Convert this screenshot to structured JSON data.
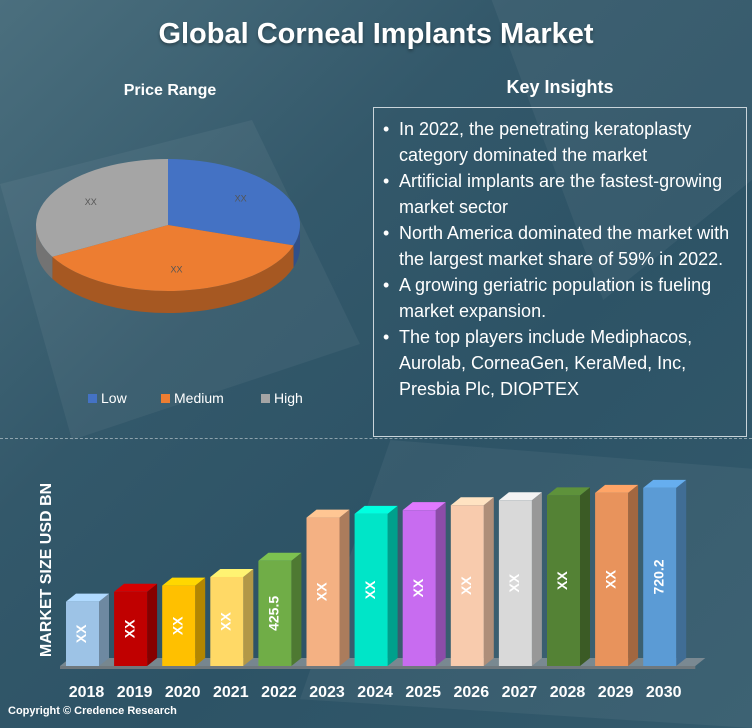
{
  "title": "Global Corneal Implants Market",
  "copyright": "Copyright © Credence Research",
  "insights": {
    "heading": "Key Insights",
    "items": [
      "In 2022, the penetrating keratoplasty category dominated the market",
      "Artificial implants are the fastest-growing market sector",
      "North America dominated the market with the largest market share of 59% in 2022.",
      "A growing geriatric population is fueling market expansion.",
      "The top players include Mediphacos, Aurolab, CorneaGen, KeraMed, Inc, Presbia Plc, DIOPTEX"
    ]
  },
  "chart_data": [
    {
      "type": "pie",
      "title": "Price Range",
      "categories": [
        "Low",
        "Medium",
        "High"
      ],
      "values": [
        30,
        37,
        33
      ],
      "labels": [
        "XX",
        "XX",
        "XX"
      ],
      "colors": [
        "#4472c4",
        "#ed7d31",
        "#a5a5a5"
      ],
      "legend": "bottom"
    },
    {
      "type": "bar",
      "title": "",
      "xlabel": "",
      "ylabel": "MARKET SIZE USD BN",
      "categories": [
        "2018",
        "2019",
        "2020",
        "2021",
        "2022",
        "2023",
        "2024",
        "2025",
        "2026",
        "2027",
        "2028",
        "2029",
        "2030"
      ],
      "values": [
        260,
        300,
        325,
        360,
        425.5,
        600,
        615,
        630,
        650,
        670,
        690,
        700,
        720.2
      ],
      "labels": [
        "XX",
        "XX",
        "XX",
        "XX",
        "425.5",
        "XX",
        "XX",
        "XX",
        "XX",
        "XX",
        "XX",
        "XX",
        "720.2"
      ],
      "colors": [
        "#9dc3e6",
        "#c00000",
        "#ffc000",
        "#ffd966",
        "#70ad47",
        "#f4b183",
        "#00e5c8",
        "#c86cf0",
        "#f8cbad",
        "#d9d9d9",
        "#548235",
        "#e8935c",
        "#5b9bd5"
      ],
      "ylim": [
        0,
        760
      ],
      "grid": false
    }
  ]
}
